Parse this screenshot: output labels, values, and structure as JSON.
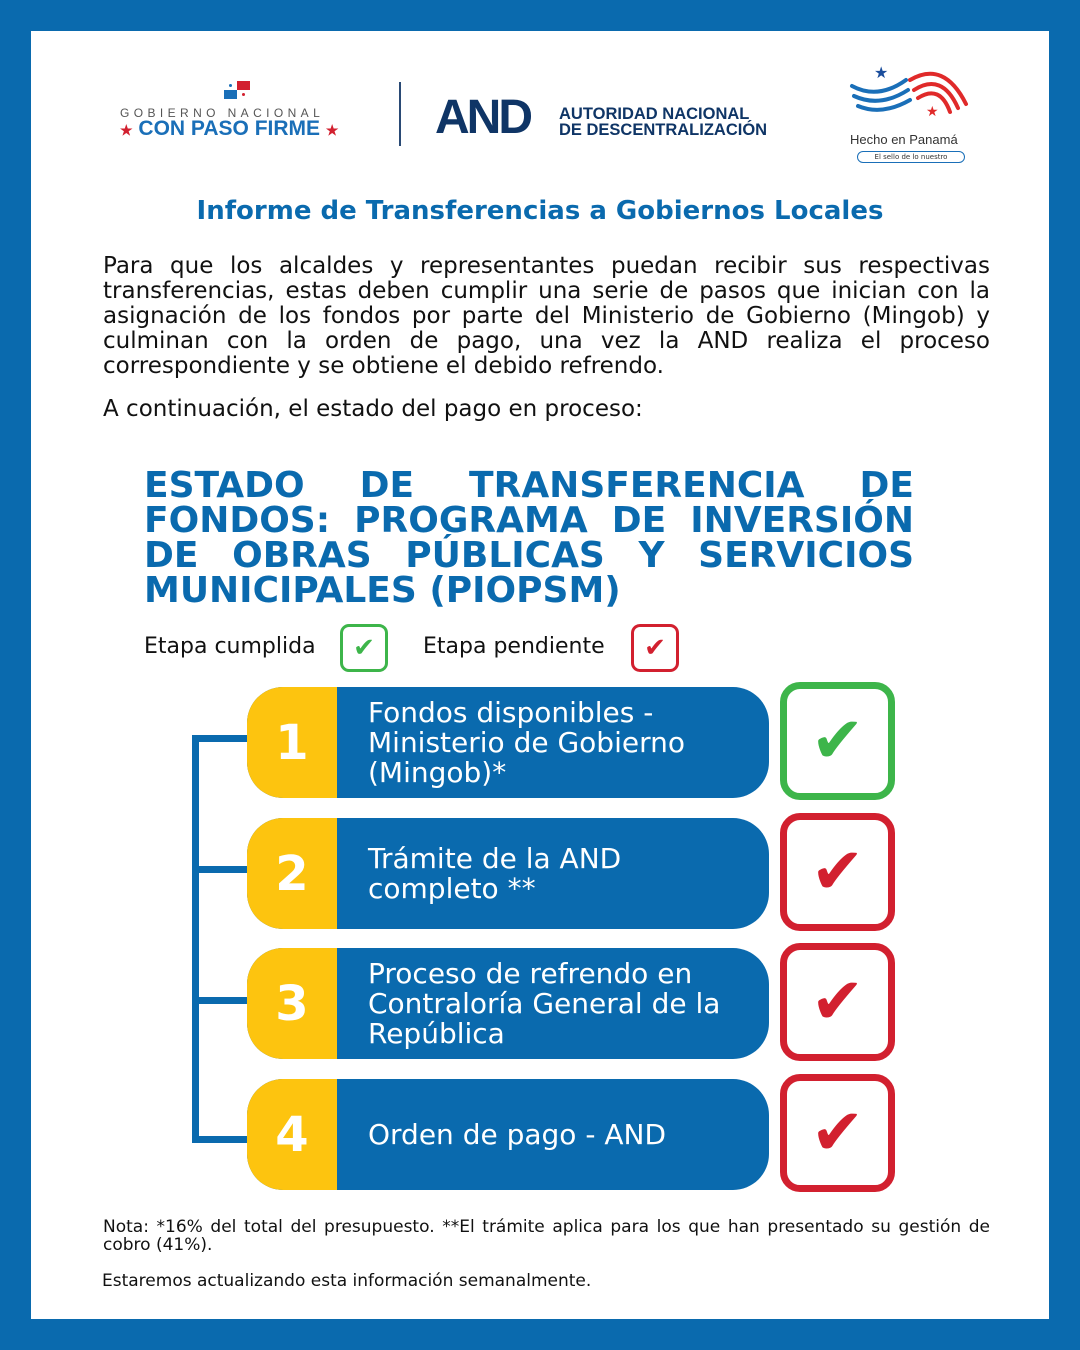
{
  "colors": {
    "brand_blue": "#0a6aae",
    "yellow": "#fdc40f",
    "done_green": "#3db54a",
    "pending_red": "#d2202f"
  },
  "header": {
    "gobierno_small": "GOBIERNO NACIONAL",
    "gobierno_big": "CON PASO FIRME",
    "and_logo": "AND",
    "and_name_line1": "AUTORIDAD NACIONAL",
    "and_name_line2": "DE DESCENTRALIZACIÓN",
    "hecho": "Hecho en Panamá",
    "sello": "El sello de lo nuestro"
  },
  "report_title": "Informe de Transferencias a Gobiernos Locales",
  "intro": "Para que los alcaldes y representantes puedan recibir sus respectivas transferencias, estas deben cumplir una serie de pasos que inician con la asignación de los fondos por parte del Ministerio de Gobierno (Mingob) y culminan con la orden de pago, una vez la AND realiza el proceso correspondiente y se obtiene el debido refrendo.",
  "intro2": "A continuación, el estado del pago en proceso:",
  "status_title": "ESTADO DE TRANSFERENCIA DE FONDOS: PROGRAMA DE INVERSIÓN DE OBRAS PÚBLICAS Y SERVICIOS MUNICIPALES (PIOPSM)",
  "legend": {
    "done": "Etapa cumplida",
    "pending": "Etapa pendiente",
    "check_glyph": "✔"
  },
  "steps": [
    {
      "number": "1",
      "label": "Fondos disponibles - Ministerio de Gobierno (Mingob)*",
      "status": "done"
    },
    {
      "number": "2",
      "label": "Trámite de la AND completo **",
      "status": "pending"
    },
    {
      "number": "3",
      "label": "Proceso de refrendo en Contraloría General de la República",
      "status": "pending"
    },
    {
      "number": "4",
      "label": "Orden de pago - AND",
      "status": "pending"
    }
  ],
  "note": "Nota: *16% del total del presupuesto. **El trámite aplica para los que han presentado su gestión de cobro (41%).",
  "update": "Estaremos actualizando esta información semanalmente."
}
